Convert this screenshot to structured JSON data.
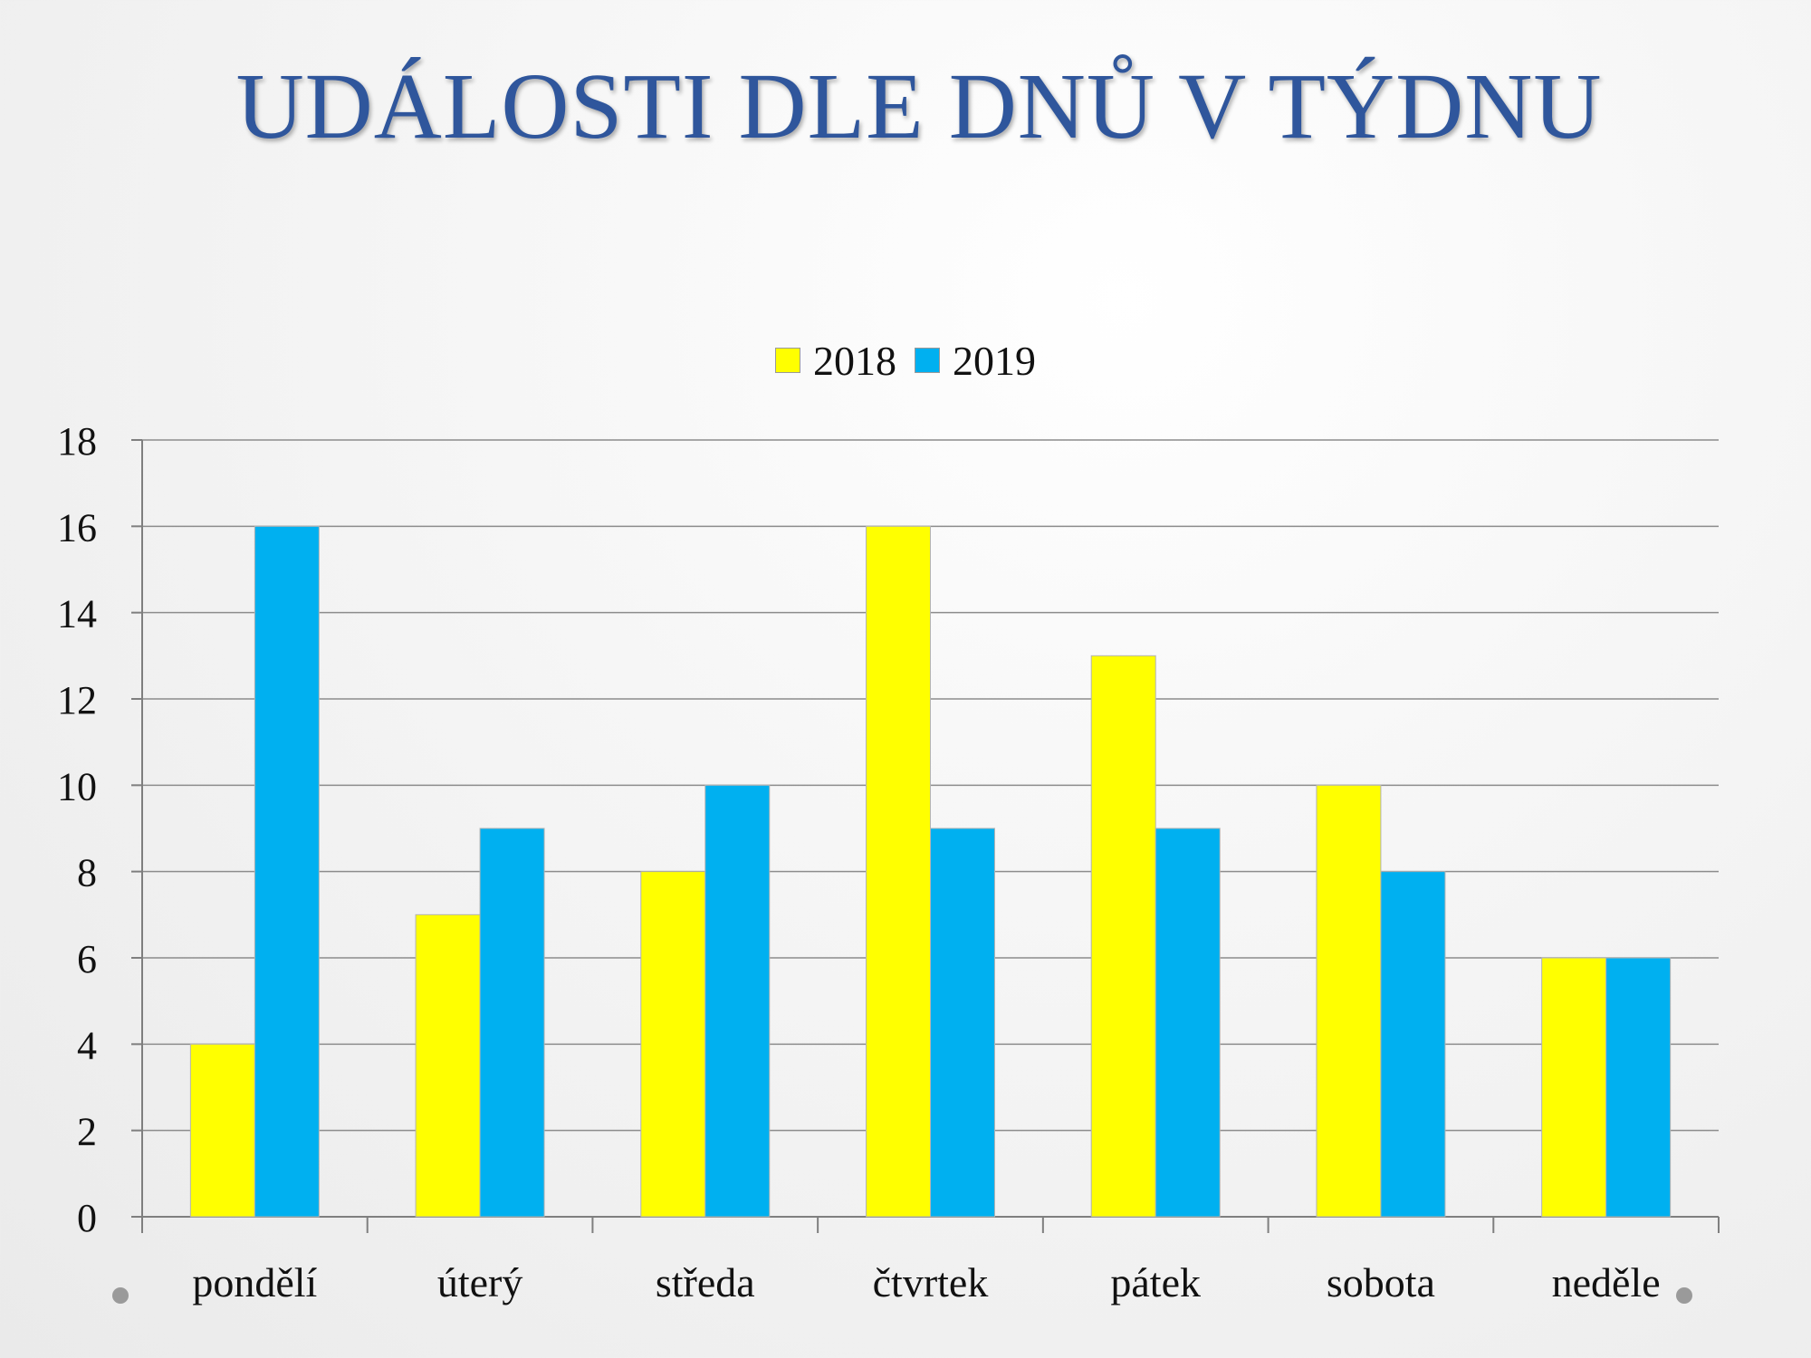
{
  "slide": {
    "title": "UDÁLOSTI DLE DNŮ V TÝDNU"
  },
  "chart_data": {
    "type": "bar",
    "categories": [
      "pondělí",
      "úterý",
      "středa",
      "čtvrtek",
      "pátek",
      "sobota",
      "neděle"
    ],
    "series": [
      {
        "name": "2018",
        "color": "#ffff00",
        "values": [
          4,
          7,
          8,
          16,
          13,
          10,
          6
        ]
      },
      {
        "name": "2019",
        "color": "#00b0f0",
        "values": [
          16,
          9,
          10,
          9,
          9,
          8,
          6
        ]
      }
    ],
    "yticks": [
      "0",
      "2",
      "4",
      "6",
      "8",
      "10",
      "12",
      "14",
      "16",
      "18"
    ],
    "ylim": [
      0,
      18
    ],
    "ystep": 2,
    "grid": true,
    "legend_position": "top"
  }
}
